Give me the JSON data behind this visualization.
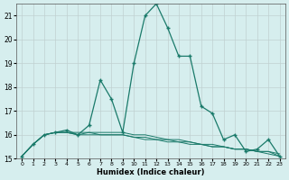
{
  "xlabel": "Humidex (Indice chaleur)",
  "x_values": [
    0,
    1,
    2,
    3,
    4,
    5,
    6,
    7,
    8,
    9,
    10,
    11,
    12,
    13,
    14,
    15,
    16,
    17,
    18,
    19,
    20,
    21,
    22,
    23
  ],
  "y_main": [
    15.1,
    15.6,
    16.0,
    16.1,
    16.2,
    16.0,
    16.4,
    18.3,
    17.5,
    16.1,
    19.0,
    21.0,
    21.5,
    20.5,
    19.3,
    19.3,
    17.2,
    16.9,
    15.8,
    16.0,
    15.3,
    15.4,
    15.8,
    15.1
  ],
  "y_line2": [
    15.1,
    15.6,
    16.0,
    16.1,
    16.1,
    16.1,
    16.1,
    16.1,
    16.1,
    16.1,
    16.0,
    16.0,
    15.9,
    15.8,
    15.8,
    15.7,
    15.6,
    15.6,
    15.5,
    15.4,
    15.4,
    15.3,
    15.3,
    15.2
  ],
  "y_line3": [
    15.1,
    15.6,
    16.0,
    16.1,
    16.1,
    16.0,
    16.1,
    16.0,
    16.0,
    16.0,
    15.9,
    15.9,
    15.8,
    15.8,
    15.7,
    15.7,
    15.6,
    15.5,
    15.5,
    15.4,
    15.4,
    15.3,
    15.3,
    15.1
  ],
  "y_line4": [
    15.1,
    15.6,
    16.0,
    16.1,
    16.1,
    16.0,
    16.0,
    16.0,
    16.0,
    16.0,
    15.9,
    15.8,
    15.8,
    15.7,
    15.7,
    15.6,
    15.6,
    15.5,
    15.5,
    15.4,
    15.4,
    15.3,
    15.2,
    15.1
  ],
  "ylim": [
    15,
    21.5
  ],
  "yticks": [
    15,
    16,
    17,
    18,
    19,
    20,
    21
  ],
  "bg_color": "#d6eeee",
  "line_color": "#1a7a6a",
  "grid_color": "#c0d0d0"
}
